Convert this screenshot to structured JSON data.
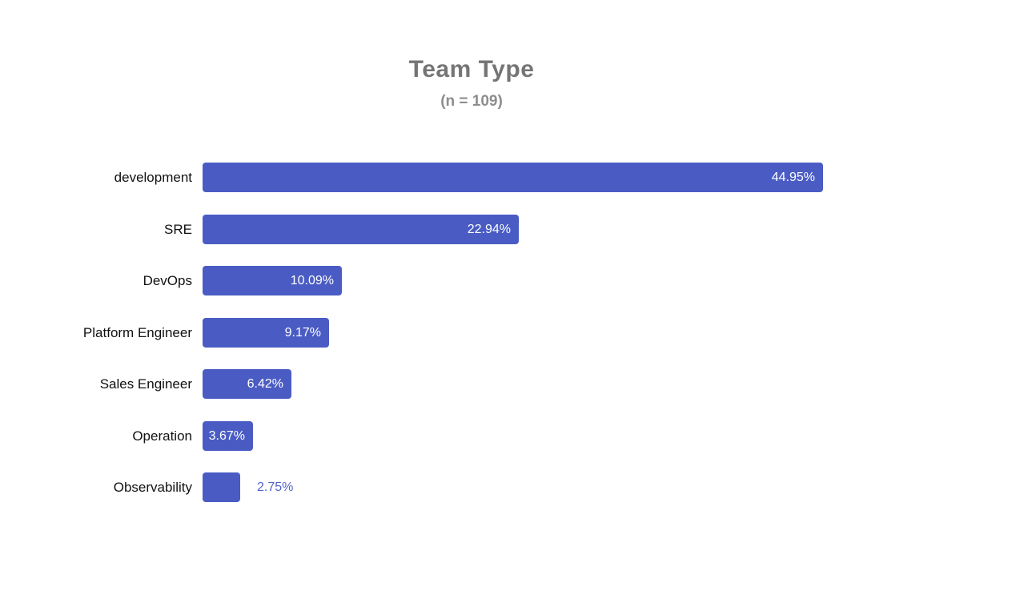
{
  "chart_data": {
    "type": "bar",
    "orientation": "horizontal",
    "title": "Team Type",
    "subtitle": "(n = 109)",
    "sample_size": 109,
    "categories": [
      "development",
      "SRE",
      "DevOps",
      "Platform Engineer",
      "Sales Engineer",
      "Operation",
      "Observability"
    ],
    "values": [
      44.95,
      22.94,
      10.09,
      9.17,
      6.42,
      3.67,
      2.75
    ],
    "value_labels": [
      "44.95%",
      "22.94%",
      "10.09%",
      "9.17%",
      "6.42%",
      "3.67%",
      "2.75%"
    ],
    "value_unit": "%",
    "xlim": [
      0,
      45
    ],
    "grid": false,
    "legend": "none",
    "axes_visible": false,
    "colors": {
      "bar": "#4a5cc4",
      "inside_label": "#ffffff",
      "outside_label": "#5263c9",
      "title": "#757575",
      "subtitle": "#8d8d8d",
      "category_label": "#111111",
      "background": "#ffffff"
    }
  }
}
